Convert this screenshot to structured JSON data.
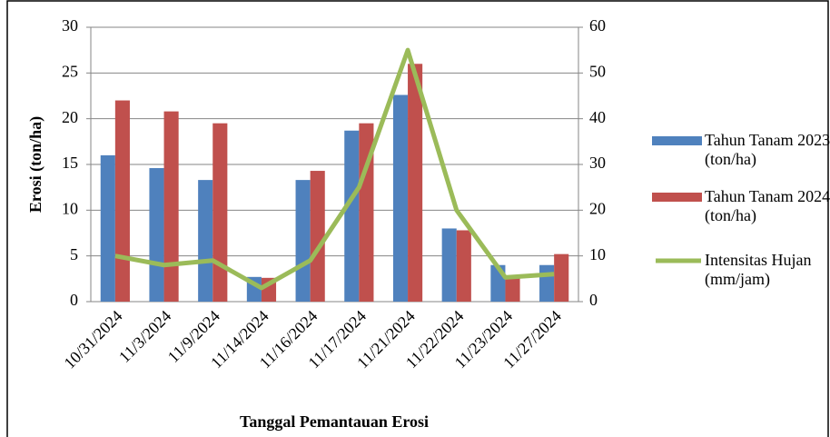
{
  "chart_data": {
    "type": "bar",
    "categories": [
      "10/31/2024",
      "11/3/2024",
      "11/9/2024",
      "11/14/2024",
      "11/16/2024",
      "11/17/2024",
      "11/21/2024",
      "11/22/2024",
      "11/23/2024",
      "11/27/2024"
    ],
    "series": [
      {
        "name": "Tahun Tanam 2023 (ton/ha)",
        "color": "#4f81bd",
        "type": "bar",
        "values": [
          16,
          14.6,
          13.3,
          2.7,
          13.3,
          18.7,
          22.6,
          8,
          4,
          4
        ]
      },
      {
        "name": "Tahun Tanam 2024 (ton/ha)",
        "color": "#c0504d",
        "type": "bar",
        "values": [
          22,
          20.8,
          19.5,
          2.6,
          14.3,
          19.5,
          26,
          7.8,
          2.7,
          5.2
        ]
      },
      {
        "name": "Intensitas Hujan (mm/jam)",
        "color": "#9bbb59",
        "type": "line",
        "axis": "y2",
        "values": [
          10,
          8,
          9,
          3,
          9,
          25,
          55,
          20,
          5.3,
          6
        ]
      }
    ],
    "ylabel": "Erosi (ton/ha)",
    "xlabel": "Tanggal Pemantauan Erosi",
    "ylim": [
      0,
      30
    ],
    "yticks": [
      0,
      5,
      10,
      15,
      20,
      25,
      30
    ],
    "y2lim": [
      0,
      60
    ],
    "y2ticks": [
      0,
      10,
      20,
      30,
      40,
      50,
      60
    ],
    "grid": true,
    "legend": "right"
  }
}
